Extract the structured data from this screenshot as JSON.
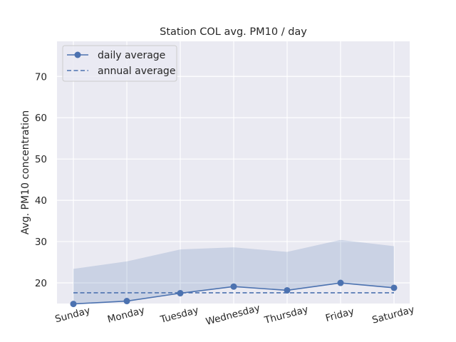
{
  "chart_data": {
    "type": "line",
    "title": "Station COL avg. PM10 / day",
    "xlabel": "",
    "ylabel": "Avg. PM10 concentration",
    "categories": [
      "Sunday",
      "Monday",
      "Tuesday",
      "Wednesday",
      "Thursday",
      "Friday",
      "Saturday"
    ],
    "ylim": [
      15,
      78.5
    ],
    "yticks": [
      20,
      30,
      40,
      50,
      60,
      70
    ],
    "grid": true,
    "legend_position": "top-left",
    "series": [
      {
        "name": "daily average",
        "values": [
          14.9,
          15.6,
          17.5,
          19.1,
          18.2,
          20.0,
          18.8
        ],
        "color": "#4c72b0",
        "style": "line-marker"
      },
      {
        "name": "annual average",
        "values": [
          17.6,
          17.6,
          17.6,
          17.6,
          17.6,
          17.6,
          17.6
        ],
        "color": "#4c72b0",
        "style": "dashed"
      }
    ],
    "band": {
      "upper": [
        23.4,
        25.2,
        28.1,
        28.6,
        27.5,
        30.4,
        28.9
      ],
      "lower": [
        14.9,
        15.6,
        17.5,
        19.1,
        18.2,
        20.0,
        18.8
      ],
      "color": "#4c72b0"
    },
    "colors": {
      "plot_background": "#eaeaf2",
      "grid": "#ffffff"
    }
  }
}
